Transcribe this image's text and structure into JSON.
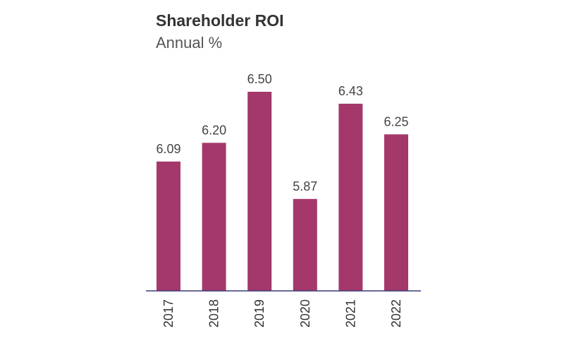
{
  "chart_data": {
    "type": "bar",
    "title": "Shareholder ROI",
    "subtitle": "Annual %",
    "categories": [
      "2017",
      "2018",
      "2019",
      "2020",
      "2021",
      "2022"
    ],
    "values": [
      6.09,
      6.2,
      6.5,
      5.87,
      6.43,
      6.25
    ],
    "value_labels": [
      "6.09",
      "6.20",
      "6.50",
      "5.87",
      "6.43",
      "6.25"
    ],
    "xlabel": "",
    "ylabel": "",
    "ylim": [
      5.33,
      6.5
    ],
    "grid": false,
    "legend": "none",
    "bar_color": "#a4386a",
    "axis_color": "#3a3a7a"
  }
}
